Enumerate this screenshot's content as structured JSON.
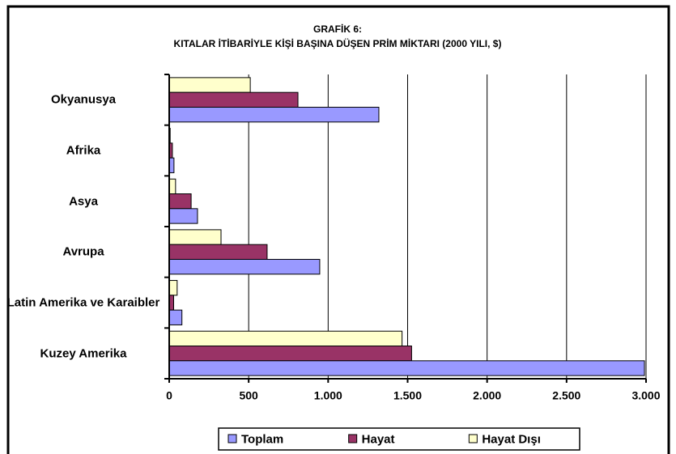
{
  "chart_data": {
    "type": "bar",
    "orientation": "horizontal",
    "title": "GRAFİK 6:",
    "subtitle": "KITALAR İTİBARİYLE KİŞİ BAŞINA DÜŞEN PRİM MİKTARI (2000 YILI, $)",
    "categories": [
      "Okyanusya",
      "Afrika",
      "Asya",
      "Avrupa",
      "Latin Amerika ve Karaibler",
      "Kuzey Amerika"
    ],
    "series": [
      {
        "name": "Toplam",
        "color": "#9999ff",
        "values": [
          1319,
          30,
          178,
          947,
          80,
          2990
        ]
      },
      {
        "name": "Hayat",
        "color": "#993366",
        "values": [
          810,
          20,
          138,
          616,
          28,
          1525
        ]
      },
      {
        "name": "Hayat Dışı",
        "color": "#ffffcc",
        "values": [
          510,
          6,
          40,
          326,
          50,
          1465
        ]
      }
    ],
    "xlim": [
      0,
      3000
    ],
    "xticks": [
      0,
      500,
      {
        "value": 1000,
        "label": "1.000"
      },
      {
        "value": 1500,
        "label": "1.500"
      },
      {
        "value": 2000,
        "label": "2.000"
      },
      {
        "value": 2500,
        "label": "2.500"
      },
      {
        "value": 3000,
        "label": "3.000"
      }
    ],
    "grid": true,
    "legend": "bottom"
  }
}
